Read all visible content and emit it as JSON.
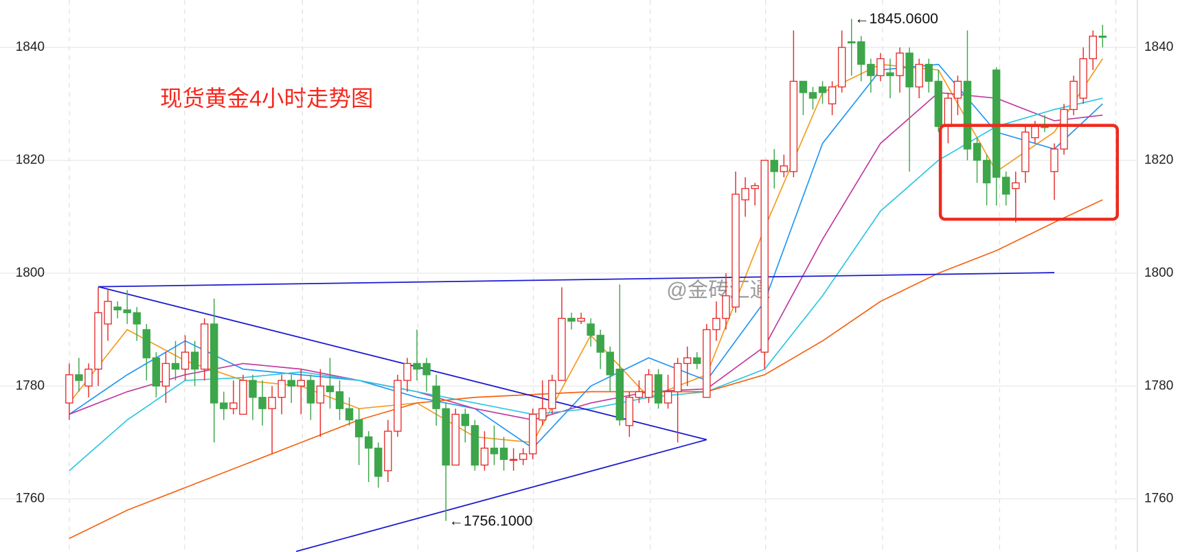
{
  "chart_data": {
    "type": "candlestick",
    "title": "现货黄金4小时走势图",
    "watermark": "@金砖汇通",
    "up_color": "#e52a2a",
    "down_color": "#3da64a",
    "ylim": [
      1750.6,
      1848.4
    ],
    "yticks": [
      1760,
      1780,
      1800,
      1820,
      1840
    ],
    "grid": true,
    "open": [
      1777,
      1782,
      1780,
      1783,
      1791,
      1794,
      1793.5,
      1793,
      1790,
      1785,
      1780,
      1784,
      1783,
      1786,
      1783,
      1791,
      1777,
      1776,
      1775,
      1781,
      1778,
      1776,
      1778,
      1781,
      1780,
      1781,
      1777,
      1780,
      1779,
      1776,
      1774,
      1771,
      1769,
      1765,
      1772,
      1781,
      1784,
      1784,
      1780,
      1776,
      1766,
      1775,
      1773,
      1766,
      1769,
      1769,
      1767,
      1767,
      1768,
      1774,
      1776,
      1781,
      1792,
      1791.5,
      1791,
      1789,
      1786,
      1783,
      1773,
      1778,
      1778,
      1782,
      1777,
      1779,
      1784,
      1785,
      1778,
      1790,
      1792,
      1794,
      1813,
      1815,
      1786,
      1820,
      1818,
      1818,
      1834,
      1832,
      1833,
      1830,
      1833,
      1841,
      1841,
      1837,
      1835,
      1835.5,
      1835,
      1839,
      1833,
      1837,
      1834,
      1826,
      1831,
      1834,
      1823,
      1820,
      1836,
      1817,
      1815,
      1818,
      1824,
      1826,
      1818,
      1822,
      1829,
      1831,
      1838,
      1842
    ],
    "high": [
      1784,
      1785,
      1784,
      1797.5,
      1797,
      1795,
      1797,
      1794,
      1791,
      1786,
      1786,
      1788,
      1789,
      1788,
      1792,
      1795.5,
      1779,
      1781,
      1782,
      1782,
      1781,
      1780,
      1782,
      1782,
      1783,
      1782,
      1783,
      1785,
      1781,
      1778,
      1776,
      1772,
      1770,
      1774,
      1782,
      1785,
      1790,
      1785,
      1782,
      1777,
      1776,
      1776,
      1774,
      1772,
      1773,
      1771,
      1769,
      1769,
      1776,
      1781,
      1782,
      1797.5,
      1793,
      1793,
      1792,
      1790,
      1787,
      1798,
      1779,
      1781,
      1783,
      1783,
      1782,
      1785,
      1787,
      1786,
      1791,
      1795,
      1800,
      1818,
      1817,
      1816,
      1820,
      1822,
      1821,
      1843,
      1834,
      1833,
      1834,
      1834,
      1843,
      1845.06,
      1842,
      1838,
      1839,
      1838,
      1840,
      1840,
      1838,
      1838,
      1836,
      1832,
      1835,
      1843,
      1824,
      1821,
      1836.5,
      1818,
      1818,
      1826,
      1827,
      1828,
      1823,
      1830,
      1835,
      1840,
      1843,
      1844
    ],
    "low": [
      1774,
      1779,
      1778,
      1780,
      1788,
      1792,
      1791,
      1788,
      1781,
      1778,
      1777,
      1781,
      1781,
      1780,
      1781,
      1770,
      1774,
      1775,
      1775,
      1774,
      1773,
      1768,
      1775,
      1777,
      1775,
      1774,
      1771,
      1776,
      1774,
      1773,
      1766,
      1763,
      1762,
      1763,
      1771,
      1779,
      1781,
      1779,
      1773,
      1756.1,
      1766,
      1770,
      1765,
      1765,
      1766,
      1765,
      1765,
      1766,
      1767,
      1773,
      1775,
      1781,
      1790,
      1791,
      1787,
      1783,
      1779,
      1773,
      1771,
      1777,
      1777,
      1776,
      1776,
      1770,
      1780,
      1783,
      1778,
      1788,
      1790,
      1793,
      1810,
      1812,
      1783,
      1815,
      1817,
      1817,
      1828,
      1829,
      1830,
      1828,
      1832,
      1835,
      1834,
      1832,
      1834,
      1831,
      1832,
      1818,
      1831,
      1832,
      1825,
      1823,
      1828,
      1820,
      1816,
      1812,
      1812,
      1812,
      1809,
      1816,
      1823,
      1825,
      1813,
      1821,
      1828,
      1830,
      1836,
      1840
    ],
    "close": [
      1782,
      1781,
      1783,
      1793,
      1795,
      1793.5,
      1793,
      1791,
      1785,
      1780,
      1784,
      1783,
      1786,
      1783,
      1791,
      1777,
      1776,
      1777,
      1781,
      1778,
      1776,
      1778,
      1781,
      1780,
      1781,
      1777,
      1780,
      1779,
      1776,
      1774,
      1771,
      1769,
      1764,
      1772,
      1781,
      1784,
      1783,
      1782,
      1776,
      1766,
      1775,
      1773,
      1766,
      1769,
      1768,
      1767,
      1767,
      1768,
      1775,
      1776,
      1781,
      1792,
      1791.5,
      1792,
      1789,
      1786,
      1782,
      1774,
      1778,
      1779,
      1782,
      1777,
      1779,
      1784,
      1785,
      1784,
      1790,
      1792,
      1796,
      1814,
      1815,
      1815.5,
      1820,
      1818,
      1819,
      1834,
      1832,
      1831,
      1832,
      1833,
      1840,
      1840.8,
      1837,
      1835,
      1838,
      1835,
      1839,
      1833,
      1837,
      1834,
      1826,
      1831,
      1834,
      1822,
      1820,
      1816,
      1817,
      1814,
      1816,
      1825,
      1826,
      1825.8,
      1822,
      1829,
      1834,
      1838,
      1842,
      1841.8
    ],
    "overlays": [
      {
        "color": "#f39a1e",
        "x": [
          0,
          6,
          12,
          18,
          24,
          30,
          36,
          42,
          48,
          54,
          60,
          66,
          72,
          78,
          84,
          90,
          96,
          102,
          107
        ],
        "values": [
          1777,
          1790,
          1784.5,
          1781,
          1780,
          1776,
          1777,
          1771,
          1770,
          1789,
          1778,
          1782,
          1808,
          1832,
          1837,
          1836,
          1818,
          1825,
          1838
        ]
      },
      {
        "color": "#2196f3",
        "x": [
          0,
          6,
          12,
          18,
          24,
          30,
          36,
          42,
          48,
          54,
          60,
          66,
          72,
          78,
          84,
          90,
          96,
          102,
          107
        ],
        "values": [
          1775,
          1782,
          1788,
          1783,
          1782,
          1781,
          1778,
          1776,
          1769,
          1780,
          1785,
          1781,
          1795,
          1823,
          1836,
          1837,
          1825,
          1822,
          1830
        ]
      },
      {
        "color": "#c0399f",
        "x": [
          0,
          6,
          12,
          18,
          24,
          30,
          36,
          42,
          48,
          54,
          60,
          66,
          72,
          78,
          84,
          90,
          96,
          102,
          107
        ],
        "values": [
          1775,
          1779,
          1782,
          1784,
          1783,
          1781,
          1779,
          1776,
          1774,
          1777,
          1779,
          1779.5,
          1787,
          1806,
          1823,
          1832,
          1831,
          1827,
          1828
        ]
      },
      {
        "color": "#2cc6e0",
        "x": [
          0,
          6,
          12,
          18,
          24,
          30,
          36,
          42,
          48,
          54,
          60,
          66,
          72,
          78,
          84,
          90,
          96,
          102,
          107
        ],
        "values": [
          1765,
          1774,
          1781,
          1781.5,
          1782.5,
          1781,
          1779,
          1777,
          1775,
          1776,
          1778,
          1779,
          1783,
          1796,
          1811,
          1820,
          1826,
          1829,
          1831
        ]
      },
      {
        "color": "#f5620f",
        "x": [
          0,
          6,
          12,
          18,
          24,
          30,
          36,
          42,
          48,
          54,
          60,
          66,
          72,
          78,
          84,
          90,
          96,
          102,
          107
        ],
        "values": [
          1753,
          1758,
          1762,
          1766,
          1770,
          1774,
          1777,
          1778,
          1778.5,
          1779,
          1779,
          1779,
          1782,
          1788,
          1795,
          1800,
          1804,
          1809,
          1813
        ]
      },
      {
        "color": "#1a1ad0",
        "x": [
          3,
          102
        ],
        "values": [
          1797.6,
          1800.1
        ]
      },
      {
        "color": "#1a1ad0",
        "x": [
          3,
          66
        ],
        "values": [
          1797.6,
          1770.5
        ]
      },
      {
        "color": "#1a1ad0",
        "x": [
          23.5,
          66
        ],
        "values": [
          1750.7,
          1770.5
        ]
      }
    ],
    "annotations": [
      {
        "text": "←1845.0600",
        "x": 81,
        "value": 1845.06
      },
      {
        "text": "←1756.1000",
        "x": 39,
        "value": 1756.1
      }
    ]
  }
}
